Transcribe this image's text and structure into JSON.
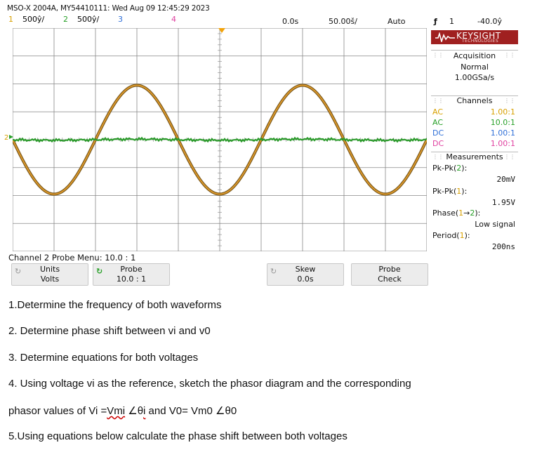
{
  "scope": {
    "header": "MSO-X 2004A, MY54410111: Wed Aug 09 12:45:29 2023",
    "channels": [
      {
        "num": "1",
        "scale": "500ŷ/",
        "color": "#d8a000"
      },
      {
        "num": "2",
        "scale": "500ŷ/",
        "color": "#28a028"
      },
      {
        "num": "3",
        "scale": "",
        "color": "#3070d8"
      },
      {
        "num": "4",
        "scale": "",
        "color": "#e040a0"
      }
    ],
    "time_delay": "0.0s",
    "time_scale": "50.00š/",
    "trigger_mode": "Auto",
    "trigger_icon": "ƒ",
    "trigger_channel": "1",
    "trigger_level": "-40.0ŷ",
    "brand": "KEYSIGHT",
    "brand_sub": "TECHNOLOGIES",
    "acquisition": {
      "title": "Acquisition",
      "mode": "Normal",
      "rate": "1.00GSa/s"
    },
    "channels_panel": {
      "title": "Channels",
      "rows": [
        {
          "coupling": "AC",
          "ratio": "1.00:1",
          "color": "#d8a000"
        },
        {
          "coupling": "AC",
          "ratio": "10.0:1",
          "color": "#28a028"
        },
        {
          "coupling": "DC",
          "ratio": "1.00:1",
          "color": "#3070d8"
        },
        {
          "coupling": "DC",
          "ratio": "1.00:1",
          "color": "#e040a0"
        }
      ]
    },
    "measurements": {
      "title": "Measurements",
      "items": [
        {
          "prefix": "Pk-Pk(",
          "ch": "2",
          "suffix": "):",
          "value": "20mV"
        },
        {
          "prefix": "Pk-Pk(",
          "ch": "1",
          "suffix": "):",
          "value": "1.95V"
        },
        {
          "prefix": "Phase(",
          "ch": "1",
          "arrow": "→",
          "ch2": "2",
          "suffix": "):",
          "value": "Low signal"
        },
        {
          "prefix": "Period(",
          "ch": "1",
          "suffix": "):",
          "value": "200ns"
        }
      ]
    },
    "menu_title": "Channel 2 Probe Menu: 10.0 : 1",
    "softkeys": [
      {
        "line1": "Units",
        "line2": "Volts"
      },
      {
        "line1": "Probe",
        "line2": "10.0 : 1"
      },
      {
        "line1": "Skew",
        "line2": "0.0s"
      },
      {
        "line1": "Probe",
        "line2": "Check"
      }
    ],
    "waveform": {
      "ch1_cycles_on_screen": 2.5,
      "ch1_pkpk_div": 3.9,
      "ch2_pkpk_div": 0.04
    }
  },
  "questions": {
    "q1": "1.Determine the frequency of both waveforms",
    "q2": "2. Determine phase shift between vi and v0",
    "q3": "3. Determine equations for both voltages",
    "q4": "4. Using voltage vi as the reference, sketch the phasor diagram and the corresponding",
    "q4b_pre": "phasor values of Vi =",
    "q4b_vmi": "Vmi",
    "q4b_mid": " ∠θ",
    "q4b_i": "i",
    "q4b_post": " and V0= Vm0 ∠θ0",
    "q5": "5.Using equations below calculate the phase shift between both voltages"
  }
}
